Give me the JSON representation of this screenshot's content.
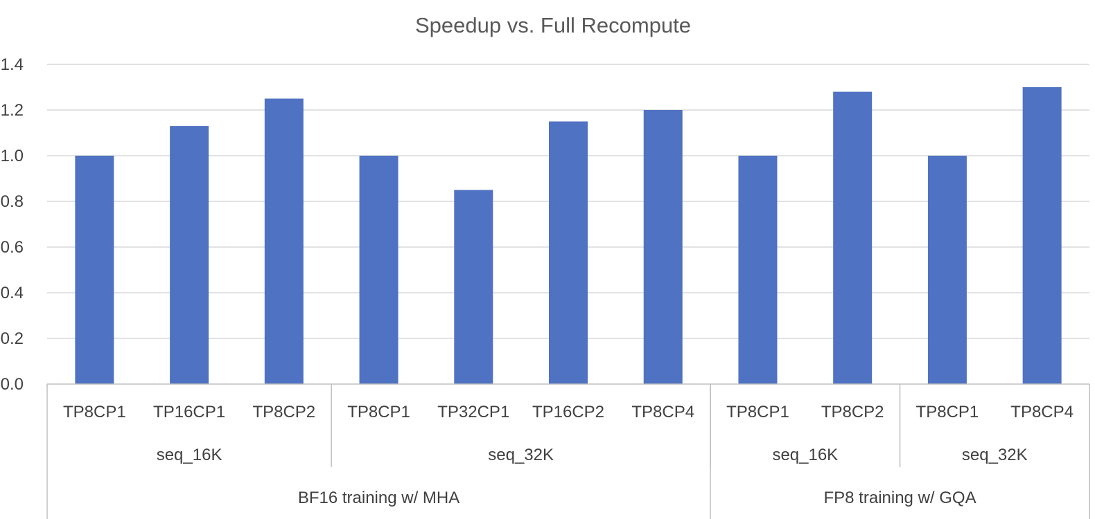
{
  "chart_data": {
    "type": "bar",
    "title": "Speedup vs. Full Recompute",
    "xlabel": "",
    "ylabel": "",
    "ylim": [
      0,
      1.4
    ],
    "y_ticks": [
      "0.0",
      "0.2",
      "0.4",
      "0.6",
      "0.8",
      "1.0",
      "1.2",
      "1.4"
    ],
    "grid": true,
    "bar_color": "#4f72c2",
    "categories": [
      "TP8CP1",
      "TP16CP1",
      "TP8CP2",
      "TP8CP1",
      "TP32CP1",
      "TP16CP2",
      "TP8CP4",
      "TP8CP1",
      "TP8CP2",
      "TP8CP1",
      "TP8CP4"
    ],
    "values": [
      1.0,
      1.13,
      1.25,
      1.0,
      0.85,
      1.15,
      1.2,
      1.0,
      1.28,
      1.0,
      1.3
    ],
    "groups_level2": [
      {
        "label": "seq_16K",
        "count": 3
      },
      {
        "label": "seq_32K",
        "count": 4
      },
      {
        "label": "seq_16K",
        "count": 2
      },
      {
        "label": "seq_32K",
        "count": 2
      }
    ],
    "groups_level1": [
      {
        "label": "BF16 training w/ MHA",
        "count": 7
      },
      {
        "label": "FP8 training w/ GQA",
        "count": 4
      }
    ]
  }
}
